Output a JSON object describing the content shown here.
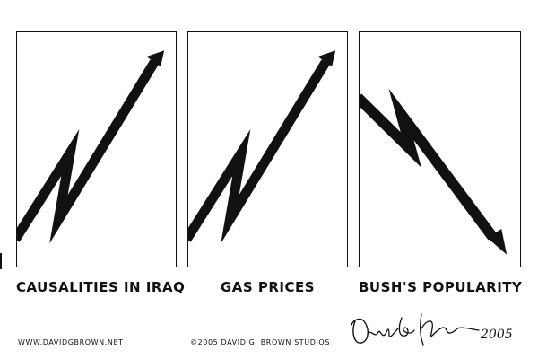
{
  "panels": [
    {
      "caption": "CAUSALITIES IN IRAQ",
      "trend": "up"
    },
    {
      "caption": "GAS PRICES",
      "trend": "up"
    },
    {
      "caption": "BUSH'S POPULARITY",
      "trend": "down"
    }
  ],
  "footer": {
    "website": "WWW.DAVIDGBROWN.NET",
    "copyright": "©2005 DAVID G. BROWN STUDIOS"
  },
  "signature": {
    "year": "2005"
  },
  "colors": {
    "ink": "#111111",
    "background": "#ffffff"
  }
}
